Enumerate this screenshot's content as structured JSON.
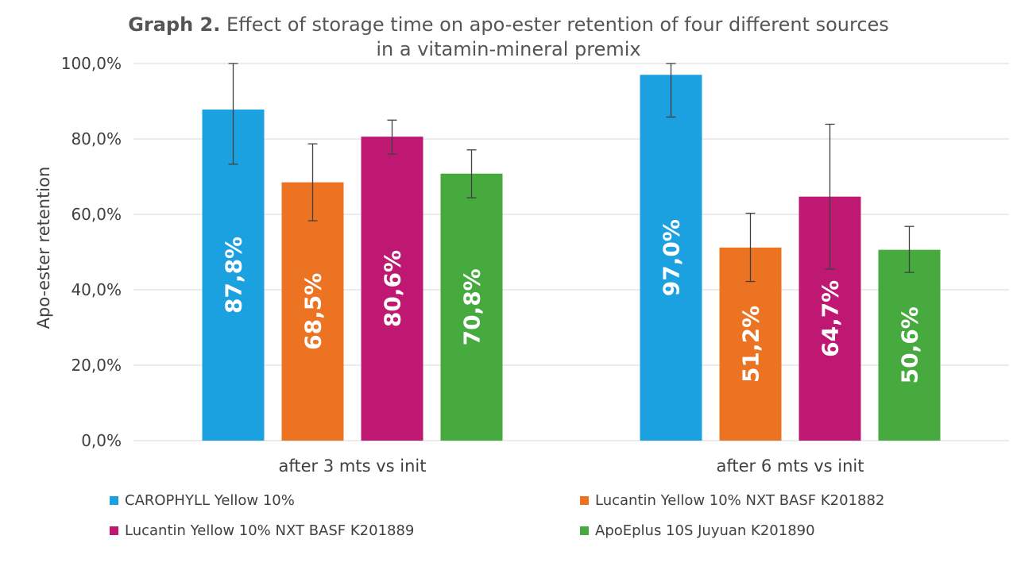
{
  "chart_data": {
    "type": "bar",
    "title_bold": "Graph 2.",
    "title_line1": "Effect of storage time on apo-ester retention of four different sources",
    "title_line2": "in a vitamin-mineral premix",
    "ylabel": "Apo-ester retention",
    "xlabel": "",
    "ylim": [
      0,
      100
    ],
    "y_ticks": [
      {
        "value": 0,
        "label": "0,0%"
      },
      {
        "value": 20,
        "label": "20,0%"
      },
      {
        "value": 40,
        "label": "40,0%"
      },
      {
        "value": 60,
        "label": "60,0%"
      },
      {
        "value": 80,
        "label": "80,0%"
      },
      {
        "value": 100,
        "label": "100,0%"
      }
    ],
    "grid": true,
    "legend_position": "bottom",
    "categories": [
      "after 3 mts vs init",
      "after 6 mts vs init"
    ],
    "series": [
      {
        "name": "CAROPHYLL Yellow 10%",
        "color": "#1BA0E0",
        "values": [
          87.8,
          97.0
        ],
        "labels": [
          "87,8%",
          "97,0%"
        ],
        "err_low": [
          73.3,
          85.8
        ],
        "err_high": [
          100.0,
          100.0
        ]
      },
      {
        "name": "Lucantin Yellow 10% NXT BASF K201882",
        "color": "#EC7322",
        "values": [
          68.5,
          51.2
        ],
        "labels": [
          "68,5%",
          "51,2%"
        ],
        "err_low": [
          58.3,
          42.2
        ],
        "err_high": [
          78.7,
          60.3
        ]
      },
      {
        "name": "Lucantin Yellow 10% NXT BASF K201889",
        "color": "#BE1872",
        "values": [
          80.6,
          64.7
        ],
        "labels": [
          "80,6%",
          "64,7%"
        ],
        "err_low": [
          76.0,
          45.5
        ],
        "err_high": [
          85.0,
          83.9
        ]
      },
      {
        "name": "ApoEplus 10S Juyuan K201890",
        "color": "#47AA3E",
        "values": [
          70.8,
          50.6
        ],
        "labels": [
          "70,8%",
          "50,6%"
        ],
        "err_low": [
          64.4,
          44.6
        ],
        "err_high": [
          77.1,
          56.8
        ]
      }
    ]
  }
}
